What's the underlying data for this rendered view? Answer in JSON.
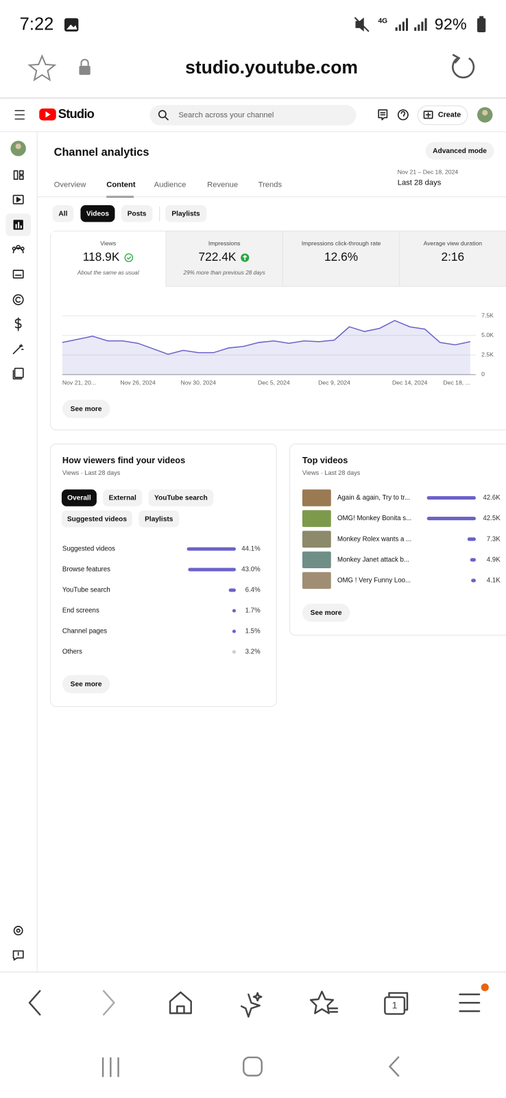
{
  "status_bar": {
    "time": "7:22",
    "network": "4G",
    "battery": "92%"
  },
  "browser": {
    "url": "studio.youtube.com",
    "tab_count": "1"
  },
  "header": {
    "logo": "Studio",
    "search_placeholder": "Search across your channel",
    "create": "Create"
  },
  "page": {
    "title": "Channel analytics",
    "advanced_mode": "Advanced mode",
    "tabs": [
      "Overview",
      "Content",
      "Audience",
      "Revenue",
      "Trends"
    ],
    "date_range": "Nov 21 – Dec 18, 2024",
    "period": "Last 28 days",
    "filters": [
      "All",
      "Videos",
      "Posts",
      "Playlists"
    ]
  },
  "metrics": [
    {
      "label": "Views",
      "value": "118.9K",
      "note": "About the same as usual"
    },
    {
      "label": "Impressions",
      "value": "722.4K",
      "note": "29% more than previous 28 days"
    },
    {
      "label": "Impressions click-through rate",
      "value": "12.6%"
    },
    {
      "label": "Average view duration",
      "value": "2:16"
    }
  ],
  "chart_data": {
    "type": "line",
    "categories": [
      "Nov 21, 20...",
      null,
      null,
      null,
      null,
      "Nov 26, 2024",
      null,
      null,
      null,
      "Nov 30, 2024",
      null,
      null,
      null,
      null,
      "Dec 5, 2024",
      null,
      null,
      null,
      "Dec 9, 2024",
      null,
      null,
      null,
      null,
      "Dec 14, 2024",
      null,
      null,
      null,
      "Dec 18, ..."
    ],
    "series": [
      {
        "name": "Views",
        "color": "#6b62c9",
        "values": [
          4100,
          4500,
          4900,
          4300,
          4300,
          4000,
          3300,
          2600,
          3100,
          2800,
          2800,
          3400,
          3600,
          4100,
          4300,
          4000,
          4300,
          4200,
          4400,
          6100,
          5500,
          5900,
          6900,
          6100,
          5800,
          4100,
          3800,
          4200
        ]
      }
    ],
    "ylim": [
      0,
      7500
    ],
    "yticks": [
      0,
      {
        "value": 2500,
        "label": "2.5K"
      },
      {
        "value": 5000,
        "label": "5.0K"
      },
      {
        "value": 7500,
        "label": "7.5K"
      }
    ],
    "grid": true,
    "see_more": "See more"
  },
  "traffic": {
    "title": "How viewers find your videos",
    "subtitle": "Views · Last 28 days",
    "chips": [
      "Overall",
      "External",
      "YouTube search",
      "Suggested videos",
      "Playlists"
    ],
    "categories": [
      "Suggested videos",
      "Browse features",
      "YouTube search",
      "End screens",
      "Channel pages",
      "Others"
    ],
    "values": [
      44.1,
      43.0,
      6.4,
      1.7,
      1.5,
      3.2
    ],
    "value_labels": [
      "44.1%",
      "43.0%",
      "6.4%",
      "1.7%",
      "1.5%",
      "3.2%"
    ],
    "colors": [
      "#6b62c9",
      "#6b62c9",
      "#6b62c9",
      "#6b62c9",
      "#6b62c9",
      "#cccccc"
    ],
    "see_more": "See more"
  },
  "top_videos": {
    "title": "Top videos",
    "subtitle": "Views · Last 28 days",
    "categories": [
      "Again & again, Try to tr...",
      "OMG! Monkey Bonita s...",
      "Monkey Rolex wants a ...",
      "Monkey Janet attack b...",
      "OMG ! Very Funny Loo..."
    ],
    "values": [
      42600,
      42500,
      7300,
      4900,
      4100
    ],
    "value_labels": [
      "42.6K",
      "42.5K",
      "7.3K",
      "4.9K",
      "4.1K"
    ],
    "color": "#6b62c9",
    "see_more": "See more"
  }
}
